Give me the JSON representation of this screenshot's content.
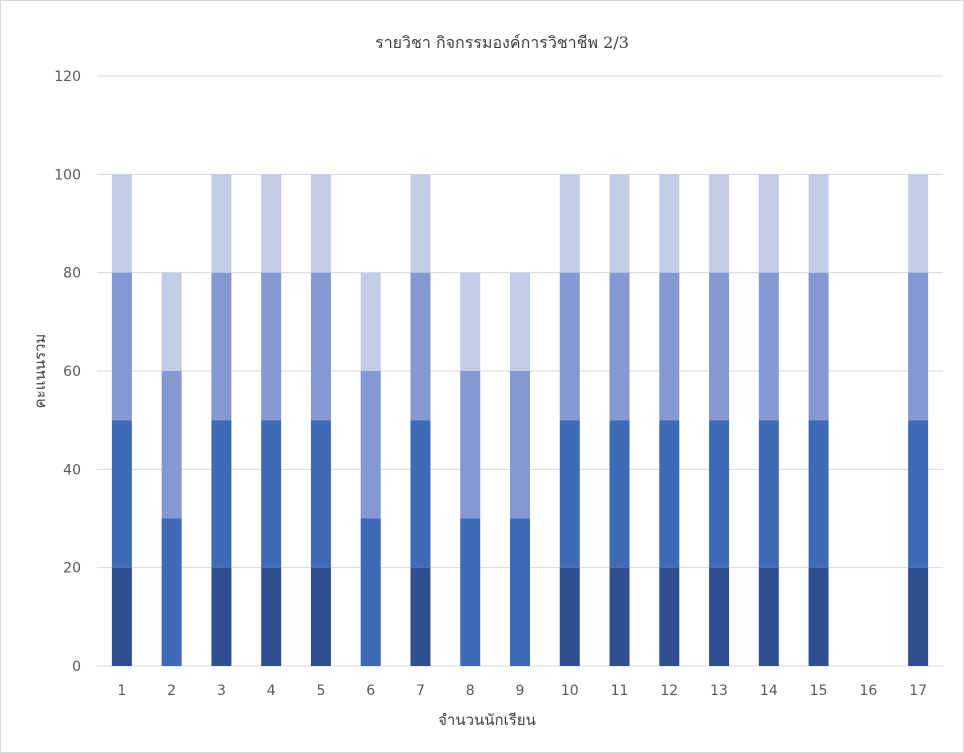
{
  "chart_data": {
    "type": "bar",
    "stacked": true,
    "title": "รายวิชา กิจกรรมองค์การวิชาชีพ 2/3",
    "xlabel": "จำนวนนักเรียน",
    "ylabel": "คะแนนรวม",
    "ylim": [
      0,
      120
    ],
    "yticks": [
      0,
      20,
      40,
      60,
      80,
      100,
      120
    ],
    "grid": true,
    "legend": "none",
    "categories": [
      "1",
      "2",
      "3",
      "4",
      "5",
      "6",
      "7",
      "8",
      "9",
      "10",
      "11",
      "12",
      "13",
      "14",
      "15",
      "16",
      "17"
    ],
    "series": [
      {
        "color": "#2f5090",
        "values": [
          20,
          0,
          20,
          20,
          20,
          0,
          20,
          0,
          0,
          20,
          20,
          20,
          20,
          20,
          20,
          0,
          20
        ]
      },
      {
        "color": "#3e6ab8",
        "values": [
          30,
          30,
          30,
          30,
          30,
          30,
          30,
          30,
          30,
          30,
          30,
          30,
          30,
          30,
          30,
          0,
          30
        ]
      },
      {
        "color": "#8499d2",
        "values": [
          30,
          30,
          30,
          30,
          30,
          30,
          30,
          30,
          30,
          30,
          30,
          30,
          30,
          30,
          30,
          0,
          30
        ]
      },
      {
        "color": "#c2cce6",
        "values": [
          20,
          20,
          20,
          20,
          20,
          20,
          20,
          20,
          20,
          20,
          20,
          20,
          20,
          20,
          20,
          0,
          20
        ]
      }
    ],
    "colors": {
      "gridline": "#d9d9d9",
      "axis": "#d9d9d9",
      "text": "#595959"
    }
  }
}
